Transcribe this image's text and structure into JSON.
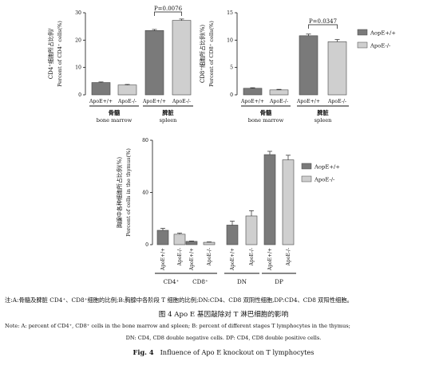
{
  "chart_data": [
    {
      "type": "bar",
      "ylabel_zh": "CD4⁺细胞所占比例/",
      "ylabel_en": "Percent of CD4⁺ cells(%)",
      "yticks": [
        0,
        10,
        20,
        30
      ],
      "ylim": [
        0,
        30
      ],
      "groups": [
        {
          "label_zh": "骨髓",
          "label_en": "bone marrow",
          "bars": [
            {
              "label": "ApoE+/+",
              "value": 4.5,
              "error": 0.2
            },
            {
              "label": "ApoE-/-",
              "value": 3.6,
              "error": 0.2
            }
          ]
        },
        {
          "label_zh": "脾脏",
          "label_en": "spleen",
          "bars": [
            {
              "label": "ApoE+/+",
              "value": 23.5,
              "error": 0.4
            },
            {
              "label": "ApoE-/-",
              "value": 27.2,
              "error": 0.5
            }
          ]
        }
      ],
      "annotation": "P=0.0076"
    },
    {
      "type": "bar",
      "ylabel_zh": "CD8⁺细胞所占比例(%)",
      "ylabel_en": "Percent of CD8⁺ cells(%)",
      "yticks": [
        0,
        5,
        10,
        15
      ],
      "ylim": [
        0,
        15
      ],
      "groups": [
        {
          "label_zh": "骨髓",
          "label_en": "bone marrow",
          "bars": [
            {
              "label": "ApoE+/+",
              "value": 1.2,
              "error": 0.1
            },
            {
              "label": "ApoE-/-",
              "value": 0.9,
              "error": 0.1
            }
          ]
        },
        {
          "label_zh": "脾脏",
          "label_en": "spleen",
          "bars": [
            {
              "label": "ApoE+/+",
              "value": 10.8,
              "error": 0.3
            },
            {
              "label": "ApoE-/-",
              "value": 9.7,
              "error": 0.4
            }
          ]
        }
      ],
      "annotation": "P=0.0347",
      "legend": [
        "AopE+/+",
        "ApoE-/-"
      ]
    },
    {
      "type": "bar",
      "ylabel_zh": "胸腺中各种细胞所占比例(%)",
      "ylabel_en": "Percent of cells in the thymus(%)",
      "yticks": [
        0,
        40,
        80
      ],
      "ylim": [
        0,
        80
      ],
      "groups": [
        {
          "label": "CD4⁺",
          "bars": [
            {
              "label": "ApoE+/+",
              "value": 11,
              "error": 1.5
            },
            {
              "label": "ApoE-/-",
              "value": 8,
              "error": 0.8
            }
          ]
        },
        {
          "label": "CD8⁺",
          "bars": [
            {
              "label": "ApoE+/+",
              "value": 2.5,
              "error": 0.3
            },
            {
              "label": "ApoE-/-",
              "value": 1.8,
              "error": 0.3
            }
          ]
        },
        {
          "label": "DN",
          "bars": [
            {
              "label": "ApoE+/+",
              "value": 15,
              "error": 3
            },
            {
              "label": "ApoE-/-",
              "value": 22,
              "error": 4
            }
          ]
        },
        {
          "label": "DP",
          "bars": [
            {
              "label": "ApoE+/+",
              "value": 69,
              "error": 2.5
            },
            {
              "label": "ApoE-/-",
              "value": 65,
              "error": 3.5
            }
          ]
        }
      ],
      "legend": [
        "AopE+/+",
        "ApoE-/-"
      ]
    }
  ],
  "caption": {
    "zh_note": "注:A:骨髓及脾脏 CD4⁺、CD8⁺细胞的比例;B:胸腺中各阶段 T 细胞的比例;DN:CD4、CD8 双阴性细胞,DP:CD4、CD8 双阳性细胞。",
    "zh_title": "图 4   Apo E 基因敲除对 T 淋巴细胞的影响",
    "en_note_1": "Note: A: percent of CD4⁺, CD8⁺ cells in the bone marrow and spleen; B: percent of different stages T lymphocytes in the thymus;",
    "en_note_2": "DN: CD4, CD8 double negative cells. DP: CD4, CD8 double positive cells.",
    "en_fig_label": "Fig. 4",
    "en_title": "Influence of Apo E knockout on T lymphocytes"
  },
  "colors": {
    "dark_bar": "#7a7a7a",
    "light_bar": "#cfcfcf",
    "axis": "#111111"
  }
}
